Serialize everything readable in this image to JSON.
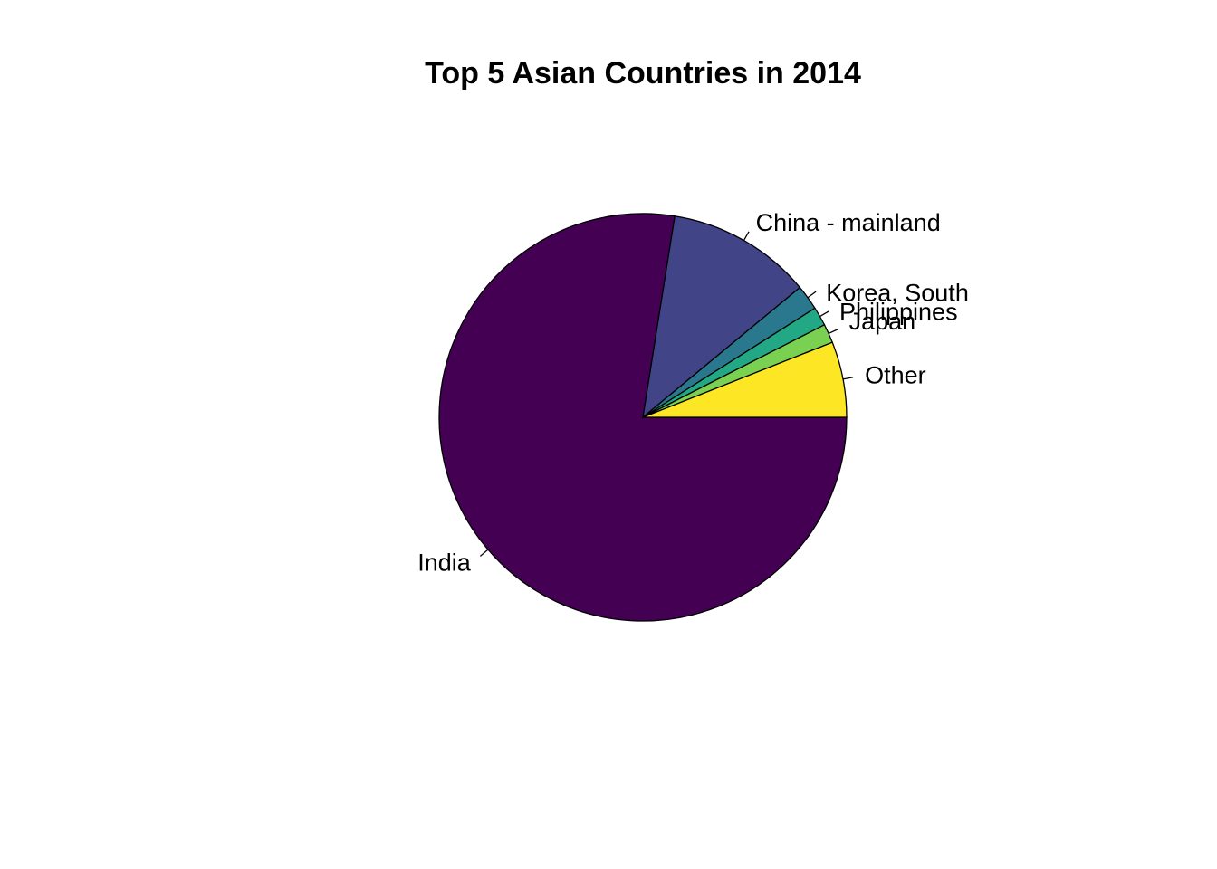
{
  "chart_data": {
    "type": "pie",
    "title": "Top 5 Asian Countries in 2014",
    "start_angle_deg": 0,
    "direction": "clockwise",
    "slices": [
      {
        "label": "India",
        "value": 77.5,
        "color": "#440154"
      },
      {
        "label": "China - mainland",
        "value": 11.5,
        "color": "#414487"
      },
      {
        "label": "Korea, South",
        "value": 2.0,
        "color": "#2A788E"
      },
      {
        "label": "Philippines",
        "value": 1.5,
        "color": "#22A884"
      },
      {
        "label": "Japan",
        "value": 1.5,
        "color": "#7AD151"
      },
      {
        "label": "Other",
        "value": 6.0,
        "color": "#FDE725"
      }
    ]
  }
}
